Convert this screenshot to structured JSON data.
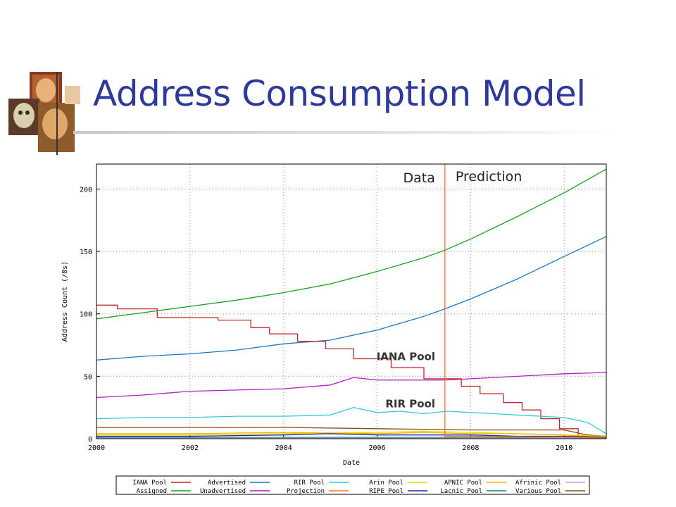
{
  "slide": {
    "title": "Address Consumption Model"
  },
  "chart_data": {
    "type": "line",
    "title": "",
    "xlabel": "Date",
    "ylabel": "Address Count (/8s)",
    "xlim": [
      2000,
      2010.9
    ],
    "ylim": [
      0,
      220
    ],
    "xticks": [
      "2000",
      "2002",
      "2004",
      "2006",
      "2008",
      "2010"
    ],
    "yticks": [
      "0",
      "50",
      "100",
      "150",
      "200"
    ],
    "grid": true,
    "divider": {
      "x": 2007.45,
      "left_label": "Data",
      "right_label": "Prediction",
      "color": "#e06a2a"
    },
    "annotations": [
      {
        "text": "IANA Pool",
        "x": 2006.7,
        "y": 63
      },
      {
        "text": "RIR Pool",
        "x": 2006.7,
        "y": 25
      }
    ],
    "legend": {
      "placement": "bottom",
      "entries": [
        [
          "IANA Pool",
          "Advertised",
          "RIR Pool",
          "Arin Pool",
          "APNIC Pool",
          "Afrinic Pool"
        ],
        [
          "Assigned",
          "Unadvertised",
          "Projection",
          "RIPE Pool",
          "Lacnic Pool",
          "Various Pool"
        ]
      ],
      "colors": [
        [
          "#c0272d",
          "#1f78c8",
          "#36c9d6",
          "#e8d800",
          "#f2b000",
          "#b7a7d8"
        ],
        [
          "#1ea01e",
          "#b01fc6",
          "#f07d1c",
          "#1c2c9c",
          "#16807c",
          "#8c4b0e"
        ]
      ]
    },
    "series": [
      {
        "name": "Assigned",
        "color": "#1ea01e",
        "x": [
          2000,
          2001,
          2002,
          2003,
          2004,
          2005,
          2006,
          2007,
          2007.45,
          2008,
          2009,
          2010,
          2010.9
        ],
        "y": [
          96,
          101,
          106,
          111,
          117,
          124,
          134,
          145,
          151,
          160,
          178,
          197,
          216
        ]
      },
      {
        "name": "Advertised",
        "color": "#1f78c8",
        "x": [
          2000,
          2001,
          2002,
          2003,
          2004,
          2005,
          2006,
          2007,
          2007.45,
          2008,
          2009,
          2010,
          2010.9
        ],
        "y": [
          63,
          66,
          68,
          71,
          76,
          79,
          87,
          98,
          104,
          112,
          128,
          146,
          162
        ]
      },
      {
        "name": "Unadvertised",
        "color": "#b01fc6",
        "x": [
          2000,
          2001,
          2002,
          2003,
          2004,
          2005,
          2005.5,
          2006,
          2007,
          2007.45,
          2008,
          2009,
          2010,
          2010.9
        ],
        "y": [
          33,
          35,
          38,
          39,
          40,
          43,
          49,
          47,
          47,
          47,
          48,
          50,
          52,
          53
        ]
      },
      {
        "name": "IANA Pool",
        "color": "#c0272d",
        "x": [
          2000,
          2000.45,
          2000.45,
          2001.3,
          2001.3,
          2002.6,
          2002.6,
          2003.3,
          2003.3,
          2003.7,
          2003.7,
          2004.3,
          2004.3,
          2004.9,
          2004.9,
          2005.5,
          2005.5,
          2006.3,
          2006.3,
          2007,
          2007,
          2007.8,
          2007.8,
          2008.2,
          2008.2,
          2008.7,
          2008.7,
          2009.1,
          2009.1,
          2009.5,
          2009.5,
          2009.9,
          2009.9,
          2010.3,
          2010.3,
          2010.9
        ],
        "y": [
          107,
          107,
          104,
          104,
          97,
          97,
          95,
          95,
          89,
          89,
          84,
          84,
          78,
          78,
          72,
          72,
          64,
          64,
          57,
          57,
          48,
          48,
          42,
          42,
          36,
          36,
          29,
          29,
          23,
          23,
          16,
          16,
          8,
          8,
          2,
          2
        ]
      },
      {
        "name": "RIR Pool",
        "color": "#36c9d6",
        "x": [
          2000,
          2001,
          2002,
          2003,
          2004,
          2005,
          2005.5,
          2006,
          2006.5,
          2007,
          2007.5,
          2008,
          2008.5,
          2009,
          2009.5,
          2010,
          2010.5,
          2010.9
        ],
        "y": [
          16,
          17,
          17,
          18,
          18,
          19,
          25,
          21,
          22,
          20,
          22,
          21,
          20,
          19,
          18,
          17,
          13,
          4
        ]
      },
      {
        "name": "Various Pool",
        "color": "#8c4b0e",
        "x": [
          2000,
          2002,
          2004,
          2006,
          2008,
          2010,
          2010.5,
          2010.9
        ],
        "y": [
          9,
          9,
          9,
          8,
          7,
          7,
          3,
          2
        ]
      },
      {
        "name": "Arin Pool",
        "color": "#e8d800",
        "x": [
          2000,
          2002,
          2004,
          2006,
          2007,
          2008,
          2009,
          2010,
          2010.9
        ],
        "y": [
          3,
          3,
          4,
          5,
          6,
          5,
          4,
          3,
          2
        ]
      },
      {
        "name": "APNIC Pool",
        "color": "#f2b000",
        "x": [
          2000,
          2002,
          2004,
          2006,
          2007,
          2008,
          2009,
          2010,
          2010.9
        ],
        "y": [
          4,
          4,
          5,
          4,
          5,
          4,
          4,
          3,
          1
        ]
      },
      {
        "name": "RIPE Pool",
        "color": "#1c2c9c",
        "x": [
          2000,
          2002,
          2004,
          2005,
          2006,
          2007,
          2008,
          2009,
          2010,
          2010.9
        ],
        "y": [
          2,
          2,
          3,
          4,
          3,
          3,
          3,
          2,
          2,
          1
        ]
      },
      {
        "name": "Lacnic Pool",
        "color": "#16807c",
        "x": [
          2000,
          2002,
          2004,
          2006,
          2008,
          2010,
          2010.9
        ],
        "y": [
          1,
          1,
          1,
          1,
          1,
          1,
          0.5
        ]
      },
      {
        "name": "Afrinic Pool",
        "color": "#b7a7d8",
        "x": [
          2000,
          2004,
          2008,
          2010.9
        ],
        "y": [
          0.5,
          0.5,
          0.5,
          0.3
        ]
      },
      {
        "name": "Projection",
        "color": "#f07d1c",
        "x": [
          2007.45,
          2008,
          2009,
          2010,
          2010.9
        ],
        "y": [
          2,
          2,
          1.5,
          1,
          0.5
        ]
      }
    ]
  }
}
